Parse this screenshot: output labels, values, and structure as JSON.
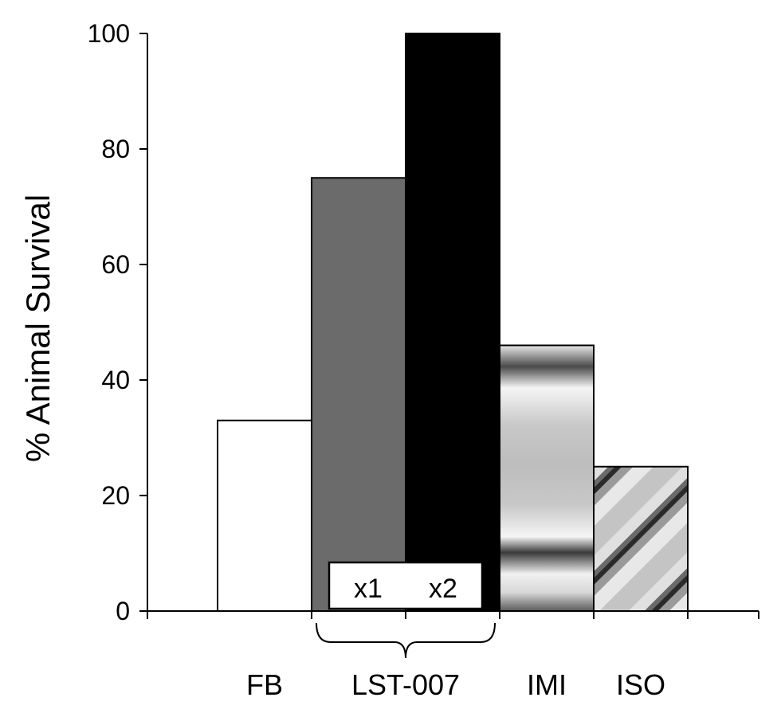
{
  "chart_data": {
    "type": "bar",
    "title": "",
    "xlabel": "",
    "ylabel": "% Animal Survival",
    "ylim": [
      0,
      100
    ],
    "yticks": [
      0,
      20,
      40,
      60,
      80,
      100
    ],
    "grid": false,
    "categories": [
      "FB",
      "LST-007",
      "IMI",
      "ISO"
    ],
    "bars": [
      {
        "category": "FB",
        "value": 33,
        "fill": "#ffffff",
        "pattern": "solid"
      },
      {
        "category": "LST-007",
        "sub_label": "x1",
        "value": 75,
        "fill": "#6b6b6b",
        "pattern": "solid"
      },
      {
        "category": "LST-007",
        "sub_label": "x2",
        "value": 100,
        "fill": "#000000",
        "pattern": "solid"
      },
      {
        "category": "IMI",
        "value": 46,
        "fill": "#bdbdbd",
        "pattern": "horizontal-gradient-bands"
      },
      {
        "category": "ISO",
        "value": 25,
        "fill": "#bdbdbd",
        "pattern": "diagonal-gradient-bands"
      }
    ],
    "group_legend": {
      "group": "LST-007",
      "labels": [
        "x1",
        "x2"
      ]
    }
  }
}
